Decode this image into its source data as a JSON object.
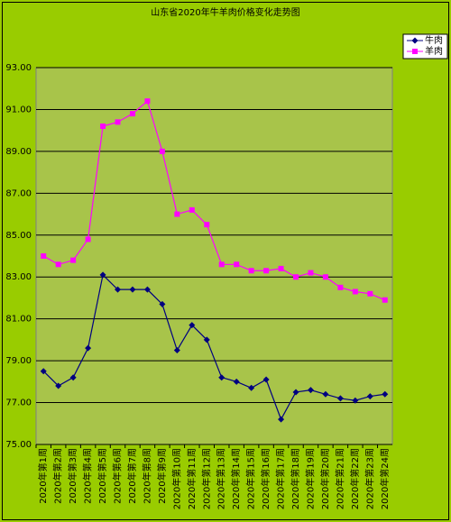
{
  "chart_data": {
    "type": "line",
    "title": "山东省2020年牛羊肉价格变化走势图",
    "categories": [
      "2020年第1周",
      "2020年第2周",
      "2020年第3周",
      "2020年第4周",
      "2020年第5周",
      "2020年第6周",
      "2020年第7周",
      "2020年第8周",
      "2020年第9周",
      "2020年第10周",
      "2020年第11周",
      "2020年第12周",
      "2020年第13周",
      "2020年第14周",
      "2020年第15周",
      "2020年第16周",
      "2020年第17周",
      "2020年第18周",
      "2020年第19周",
      "2020年第20周",
      "2020年第21周",
      "2020年第22周",
      "2020年第23周",
      "2020年第24周"
    ],
    "series": [
      {
        "name": "牛肉",
        "color": "#000080",
        "marker": "diamond",
        "values": [
          78.5,
          77.8,
          78.2,
          79.6,
          83.1,
          82.4,
          82.4,
          82.4,
          81.7,
          79.5,
          80.7,
          80.0,
          78.2,
          78.0,
          77.7,
          78.1,
          76.2,
          77.5,
          77.6,
          77.4,
          77.2,
          77.1,
          77.3,
          77.4
        ]
      },
      {
        "name": "羊肉",
        "color": "#ff00ff",
        "marker": "square",
        "values": [
          84.0,
          83.6,
          83.8,
          84.8,
          90.2,
          90.4,
          90.8,
          91.4,
          89.0,
          86.0,
          86.2,
          85.5,
          83.6,
          83.6,
          83.3,
          83.3,
          83.4,
          83.0,
          83.2,
          83.0,
          82.5,
          82.3,
          82.2,
          81.9
        ]
      }
    ],
    "ylim": [
      75,
      93
    ],
    "yticks": [
      {
        "value": 75,
        "label": "75.00"
      },
      {
        "value": 77,
        "label": "77.00"
      },
      {
        "value": 79,
        "label": "79.00"
      },
      {
        "value": 81,
        "label": "81.00"
      },
      {
        "value": 83,
        "label": "83.00"
      },
      {
        "value": 85,
        "label": "85.00"
      },
      {
        "value": 87,
        "label": "87.00"
      },
      {
        "value": 89,
        "label": "89.00"
      },
      {
        "value": 91,
        "label": "91.00"
      },
      {
        "value": 93,
        "label": "93.00"
      }
    ],
    "grid": true,
    "legend": "top-right"
  }
}
